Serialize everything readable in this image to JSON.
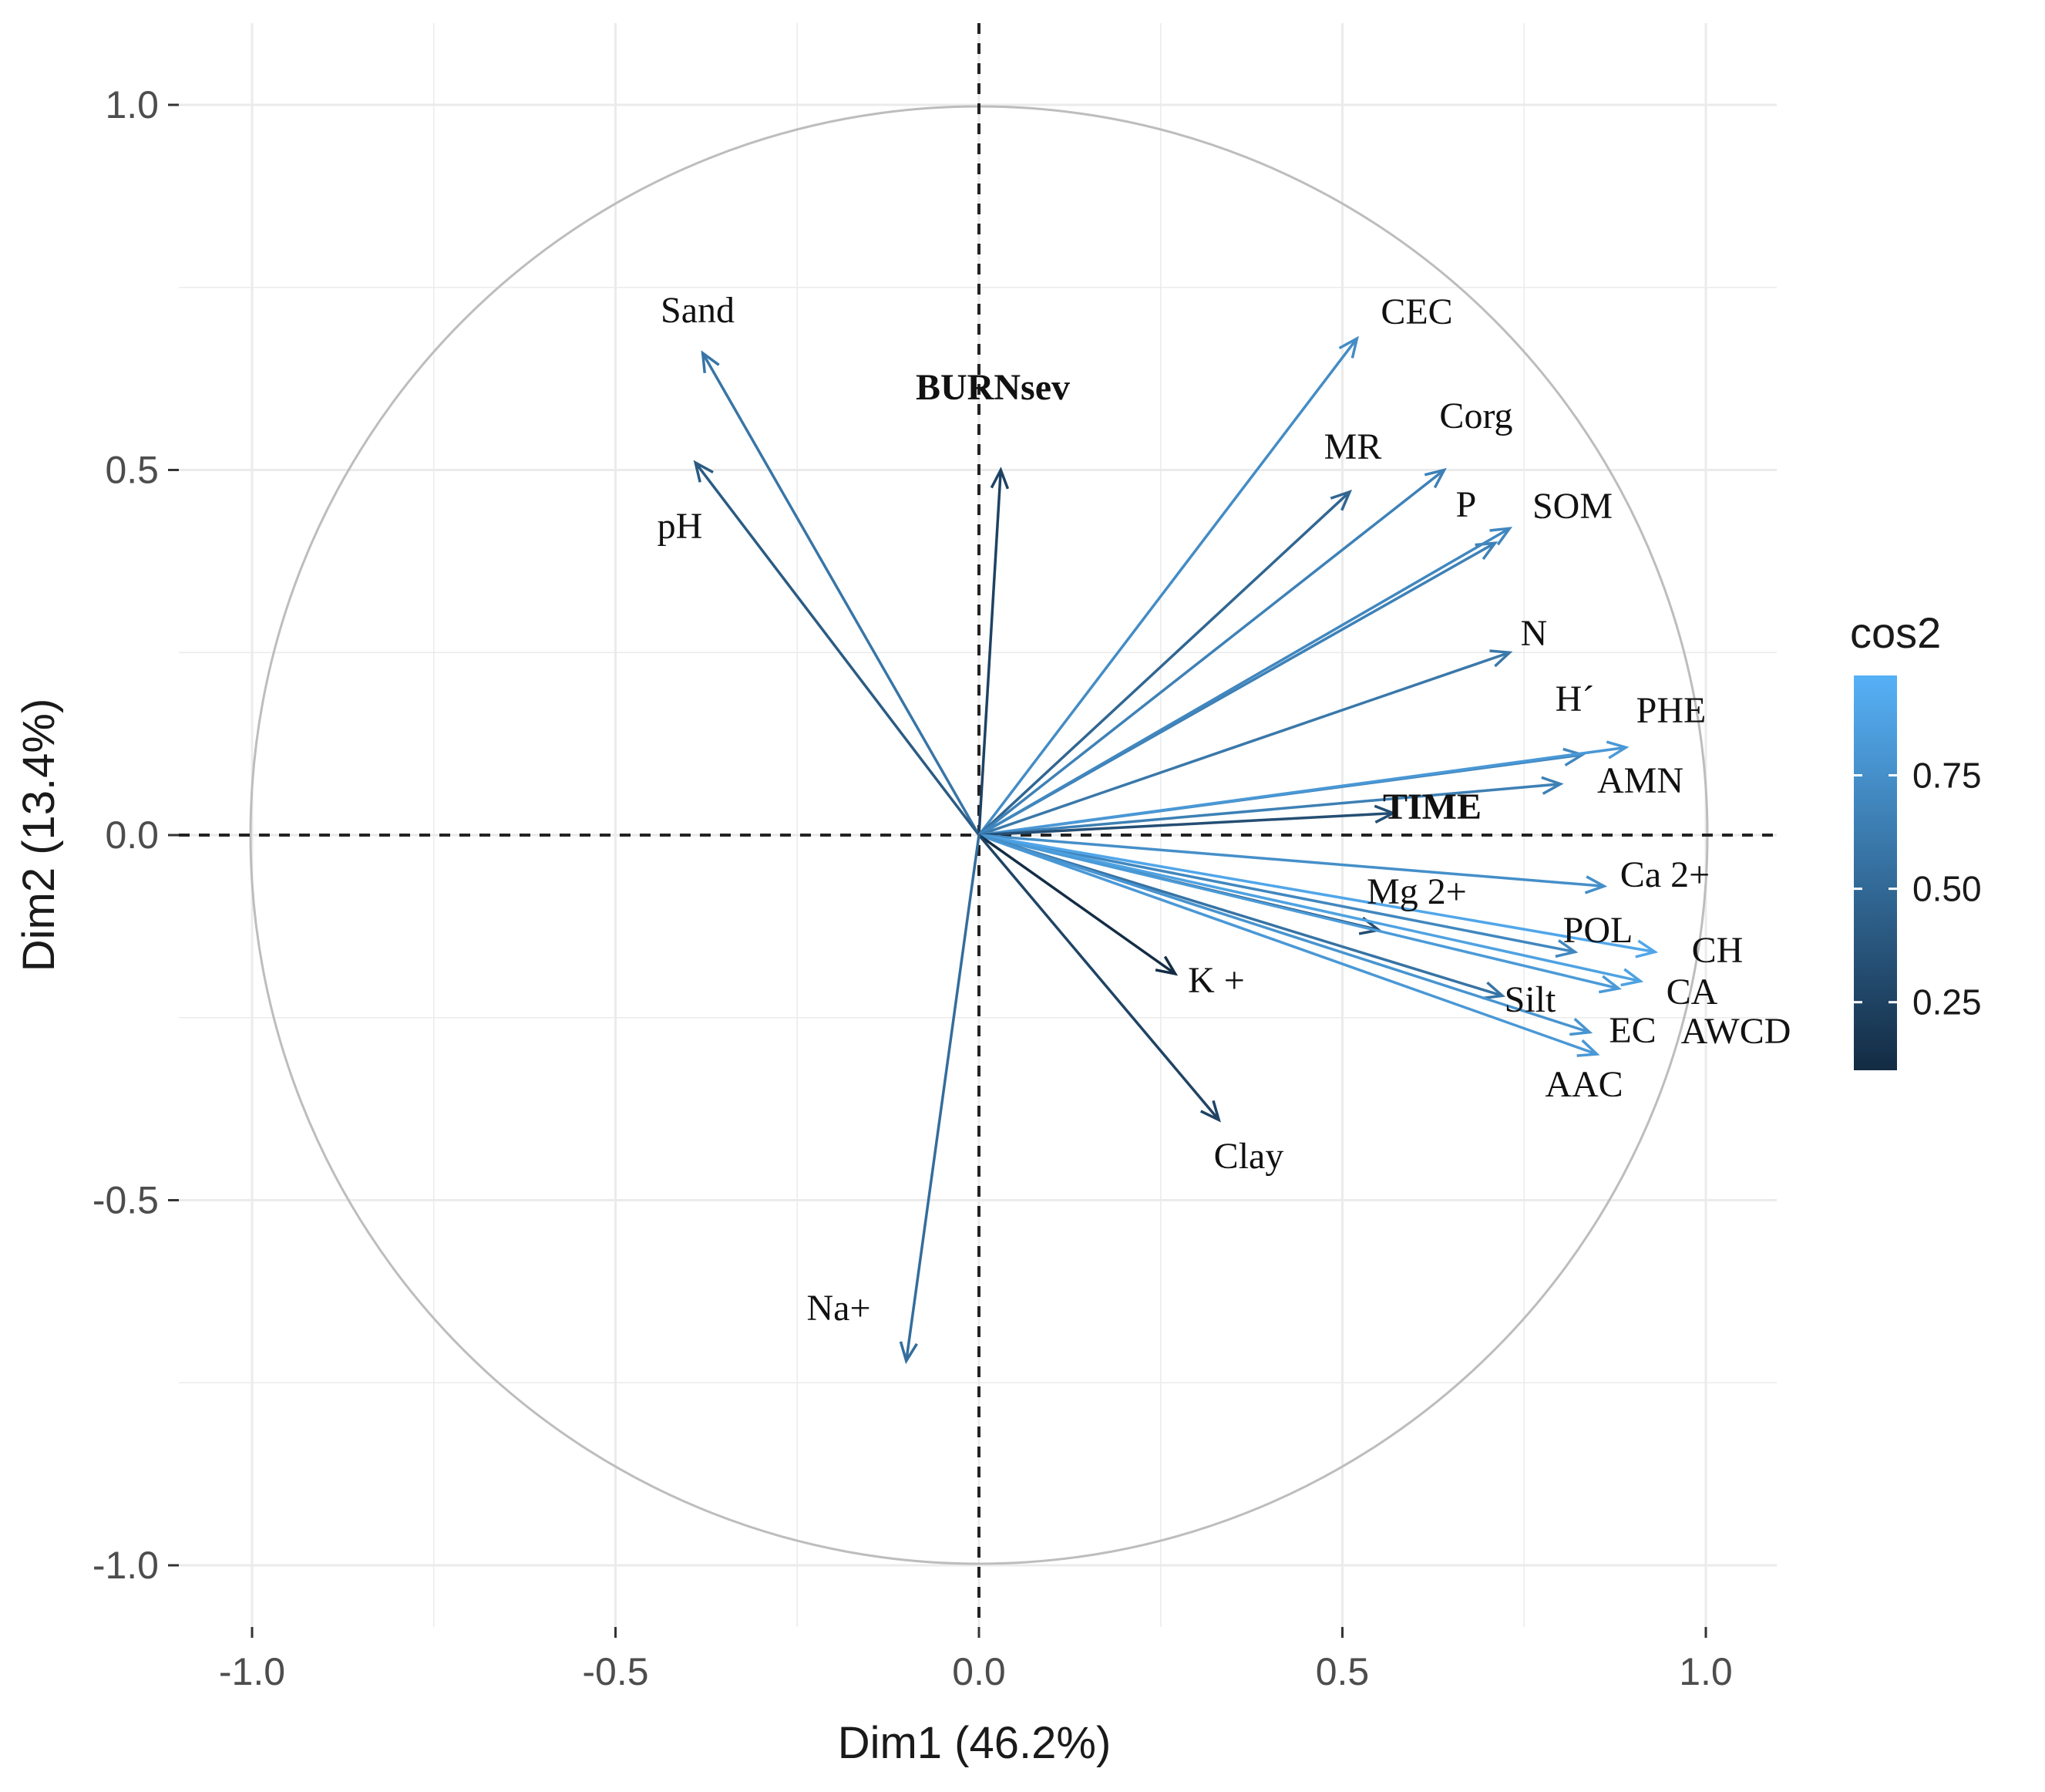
{
  "chart_data": {
    "type": "pca-variable-correlation-circle",
    "xlabel": "Dim1 (46.2%)",
    "ylabel": "Dim2 (13.4%)",
    "xlim": [
      -1.1,
      1.1
    ],
    "ylim": [
      -1.1,
      1.1
    ],
    "x_ticks": [
      {
        "value": -1.0,
        "label": "-1.0"
      },
      {
        "value": -0.5,
        "label": "-0.5"
      },
      {
        "value": 0.0,
        "label": "0.0"
      },
      {
        "value": 0.5,
        "label": "0.5"
      },
      {
        "value": 1.0,
        "label": "1.0"
      }
    ],
    "y_ticks": [
      {
        "value": -1.0,
        "label": "-1.0"
      },
      {
        "value": -0.5,
        "label": "-0.5"
      },
      {
        "value": 0.0,
        "label": "0.0"
      },
      {
        "value": 0.5,
        "label": "0.5"
      },
      {
        "value": 1.0,
        "label": "1.0"
      }
    ],
    "grid": true,
    "unit_circle": true,
    "legend": {
      "title": "cos2",
      "placement": "right",
      "range": [
        0.1,
        0.97
      ],
      "ticks": [
        {
          "value": 0.25,
          "label": "0.25"
        },
        {
          "value": 0.5,
          "label": "0.50"
        },
        {
          "value": 0.75,
          "label": "0.75"
        }
      ],
      "color_low": "#132b43",
      "color_high": "#56b1f7"
    },
    "variables": [
      {
        "name": "Sand",
        "x": -0.38,
        "y": 0.66,
        "cos2": 0.58
      },
      {
        "name": "pH",
        "x": -0.39,
        "y": 0.51,
        "cos2": 0.41
      },
      {
        "name": "BURNsev",
        "x": 0.03,
        "y": 0.5,
        "cos2": 0.25,
        "bold": true
      },
      {
        "name": "CEC",
        "x": 0.52,
        "y": 0.68,
        "cos2": 0.73
      },
      {
        "name": "MR",
        "x": 0.51,
        "y": 0.47,
        "cos2": 0.48
      },
      {
        "name": "Corg",
        "x": 0.64,
        "y": 0.5,
        "cos2": 0.66
      },
      {
        "name": "P",
        "x": 0.71,
        "y": 0.4,
        "cos2": 0.66
      },
      {
        "name": "SOM",
        "x": 0.73,
        "y": 0.42,
        "cos2": 0.7
      },
      {
        "name": "N",
        "x": 0.73,
        "y": 0.25,
        "cos2": 0.6
      },
      {
        "name": "H´",
        "x": 0.83,
        "y": 0.11,
        "cos2": 0.7
      },
      {
        "name": "PHE",
        "x": 0.89,
        "y": 0.12,
        "cos2": 0.81
      },
      {
        "name": "AMN",
        "x": 0.8,
        "y": 0.07,
        "cos2": 0.65
      },
      {
        "name": "TIME",
        "x": 0.57,
        "y": 0.03,
        "cos2": 0.33,
        "bold": true
      },
      {
        "name": "Ca 2+",
        "x": 0.86,
        "y": -0.07,
        "cos2": 0.75
      },
      {
        "name": "Mg 2+",
        "x": 0.55,
        "y": -0.13,
        "cos2": 0.32
      },
      {
        "name": "POL",
        "x": 0.82,
        "y": -0.16,
        "cos2": 0.7
      },
      {
        "name": "CH",
        "x": 0.93,
        "y": -0.16,
        "cos2": 0.9
      },
      {
        "name": "CA",
        "x": 0.91,
        "y": -0.2,
        "cos2": 0.87
      },
      {
        "name": "AWCD",
        "x": 0.88,
        "y": -0.21,
        "cos2": 0.82
      },
      {
        "name": "Silt",
        "x": 0.72,
        "y": -0.22,
        "cos2": 0.57
      },
      {
        "name": "EC",
        "x": 0.85,
        "y": -0.3,
        "cos2": 0.81
      },
      {
        "name": "AAC",
        "x": 0.84,
        "y": -0.27,
        "cos2": 0.78
      },
      {
        "name": "K +",
        "x": 0.27,
        "y": -0.19,
        "cos2": 0.11
      },
      {
        "name": "Clay",
        "x": 0.33,
        "y": -0.39,
        "cos2": 0.26
      },
      {
        "name": "Na+",
        "x": -0.1,
        "y": -0.72,
        "cos2": 0.53
      }
    ]
  }
}
